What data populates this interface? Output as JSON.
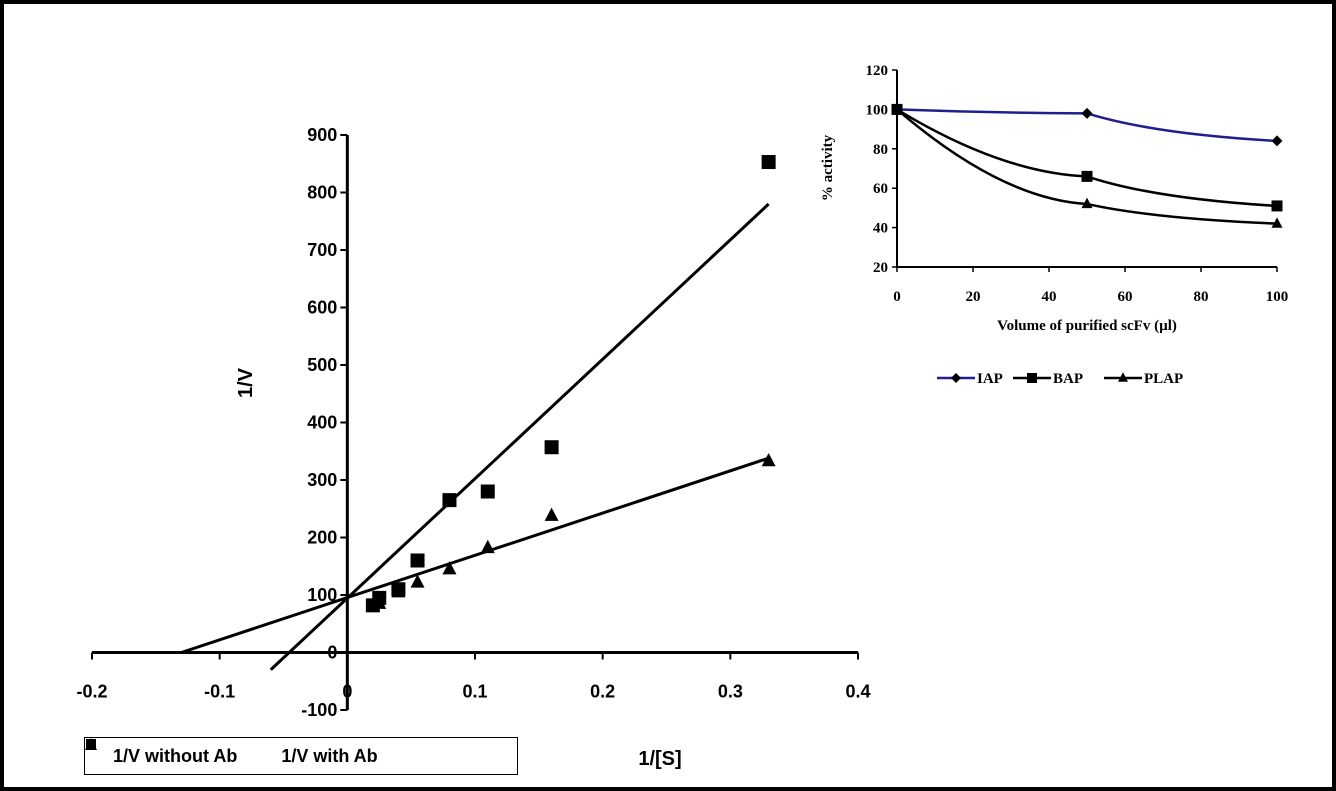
{
  "chart_data": [
    {
      "type": "scatter",
      "title": "",
      "xlabel": "1/[S]",
      "ylabel": "1/V",
      "xlim": [
        -0.2,
        0.4
      ],
      "ylim": [
        -100,
        900
      ],
      "x_ticks": [
        "-0.2",
        "-0.1",
        "0",
        "0.1",
        "0.2",
        "0.3",
        "0.4"
      ],
      "y_ticks": [
        "-100",
        "0",
        "100",
        "200",
        "300",
        "400",
        "500",
        "600",
        "700",
        "800",
        "900"
      ],
      "grid": false,
      "legend_position": "bottom-left",
      "series": [
        {
          "name": "1/V without Ab",
          "marker": "triangle",
          "color": "#000000",
          "x": [
            0.02,
            0.025,
            0.04,
            0.055,
            0.08,
            0.11,
            0.16,
            0.33
          ],
          "y": [
            80,
            85,
            105,
            122,
            145,
            182,
            238,
            333
          ],
          "trendline": {
            "x": [
              -0.13,
              0.33
            ],
            "y": [
              0,
              338
            ]
          }
        },
        {
          "name": "1/V with Ab",
          "marker": "square",
          "color": "#000000",
          "x": [
            0.02,
            0.025,
            0.04,
            0.055,
            0.08,
            0.11,
            0.16,
            0.33
          ],
          "y": [
            82,
            95,
            110,
            160,
            265,
            280,
            357,
            853
          ],
          "trendline": {
            "x": [
              -0.06,
              0.33
            ],
            "y": [
              -30,
              780
            ]
          }
        }
      ]
    },
    {
      "type": "line",
      "title": "",
      "xlabel": "Volume of purified scFv (µl)",
      "ylabel": "% activity",
      "xlim": [
        0,
        100
      ],
      "ylim": [
        20,
        120
      ],
      "x_ticks": [
        "0",
        "20",
        "40",
        "60",
        "80",
        "100"
      ],
      "y_ticks": [
        "20",
        "40",
        "60",
        "80",
        "100",
        "120"
      ],
      "grid": false,
      "legend_position": "bottom",
      "series": [
        {
          "name": "IAP",
          "marker": "diamond",
          "color": "#1f1f8f",
          "x": [
            0,
            50,
            100
          ],
          "y": [
            100,
            98,
            84
          ]
        },
        {
          "name": "BAP",
          "marker": "square",
          "color": "#000000",
          "x": [
            0,
            50,
            100
          ],
          "y": [
            100,
            66,
            51
          ]
        },
        {
          "name": "PLAP",
          "marker": "triangle",
          "color": "#000000",
          "x": [
            0,
            50,
            100
          ],
          "y": [
            100,
            52,
            42
          ]
        }
      ]
    }
  ]
}
